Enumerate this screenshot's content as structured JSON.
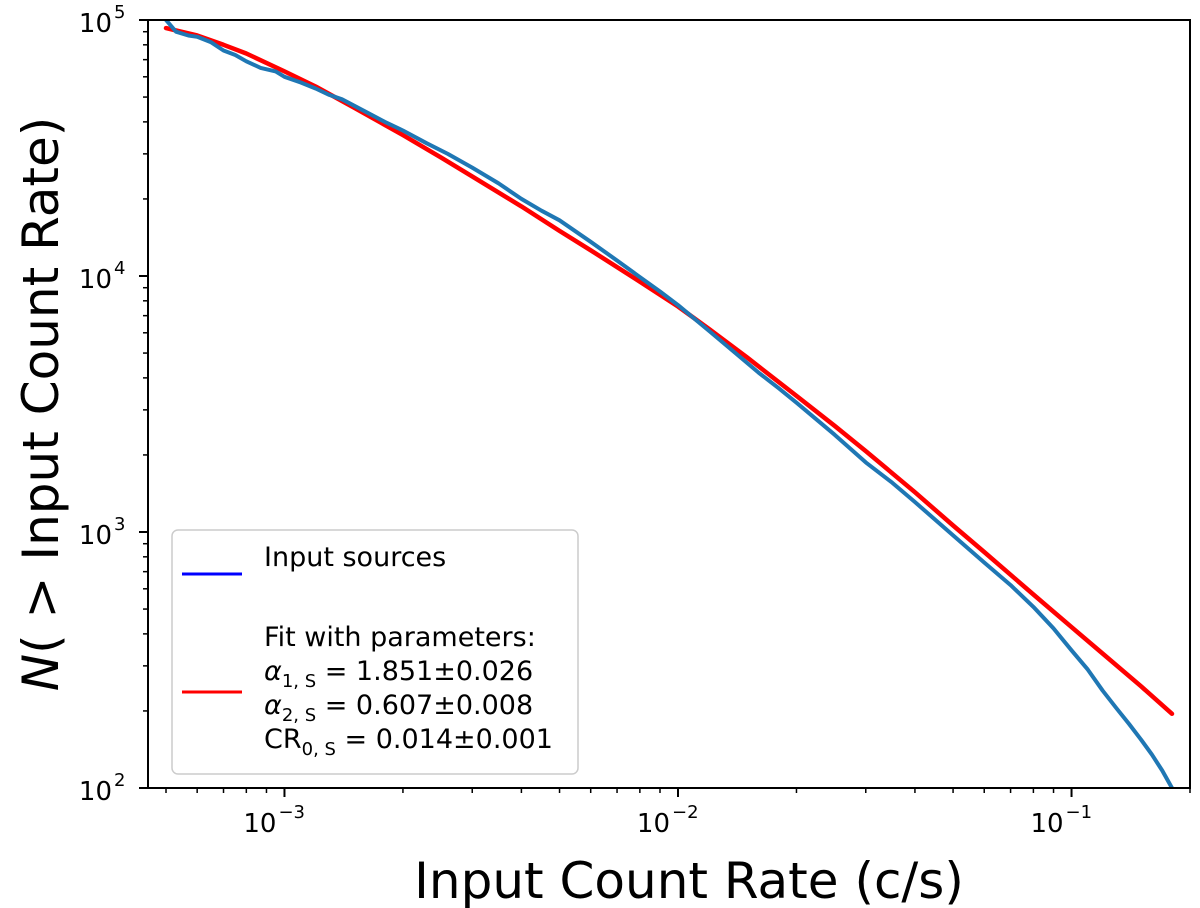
{
  "chart_data": {
    "type": "line",
    "title": "",
    "xlabel": "Input Count Rate (c/s)",
    "ylabel": "N( > Input Count Rate)",
    "xscale": "log",
    "yscale": "log",
    "xlim": [
      0.00045,
      0.2
    ],
    "ylim": [
      100,
      100000
    ],
    "x_ticks": [
      {
        "base": "10",
        "exp": "−3",
        "value": 0.001
      },
      {
        "base": "10",
        "exp": "−2",
        "value": 0.01
      },
      {
        "base": "10",
        "exp": "−1",
        "value": 0.1
      }
    ],
    "y_ticks": [
      {
        "base": "10",
        "exp": "2",
        "value": 100
      },
      {
        "base": "10",
        "exp": "3",
        "value": 1000
      },
      {
        "base": "10",
        "exp": "4",
        "value": 10000
      },
      {
        "base": "10",
        "exp": "5",
        "value": 100000
      }
    ],
    "grid": false,
    "legend_position": "lower-left",
    "series": [
      {
        "name": "Input sources",
        "legend_color": "#0000ff",
        "color": "#1f77b4",
        "x": [
          0.0005,
          0.00053,
          0.00057,
          0.0006,
          0.00065,
          0.0007,
          0.00075,
          0.0008,
          0.00087,
          0.00095,
          0.001,
          0.0011,
          0.0012,
          0.0013,
          0.0014,
          0.0016,
          0.0018,
          0.002,
          0.0023,
          0.0026,
          0.003,
          0.0035,
          0.004,
          0.0045,
          0.005,
          0.006,
          0.007,
          0.008,
          0.009,
          0.01,
          0.012,
          0.014,
          0.016,
          0.018,
          0.02,
          0.025,
          0.03,
          0.035,
          0.04,
          0.05,
          0.06,
          0.07,
          0.08,
          0.09,
          0.1,
          0.11,
          0.12,
          0.13,
          0.14,
          0.15,
          0.16,
          0.17,
          0.18
        ],
        "y": [
          100000,
          90000,
          87000,
          86000,
          82000,
          76000,
          73000,
          69000,
          65000,
          63000,
          60000,
          57000,
          54000,
          51000,
          49000,
          44000,
          40000,
          37000,
          33000,
          30000,
          26500,
          23000,
          20000,
          18000,
          16500,
          13600,
          11500,
          9900,
          8700,
          7700,
          6100,
          5000,
          4200,
          3650,
          3200,
          2400,
          1870,
          1560,
          1310,
          970,
          760,
          620,
          510,
          420,
          345,
          290,
          240,
          205,
          178,
          155,
          135,
          117,
          100
        ]
      },
      {
        "name": "Fit with parameters:",
        "color": "#ff0000",
        "x": [
          0.0005,
          0.0006,
          0.0007,
          0.0008,
          0.001,
          0.0012,
          0.0015,
          0.002,
          0.0025,
          0.003,
          0.004,
          0.005,
          0.006,
          0.008,
          0.01,
          0.012,
          0.015,
          0.02,
          0.025,
          0.03,
          0.04,
          0.05,
          0.06,
          0.08,
          0.1,
          0.12,
          0.15,
          0.18
        ],
        "y": [
          93000,
          87000,
          80000,
          74000,
          63000,
          55000,
          45500,
          35500,
          29000,
          24500,
          18700,
          15000,
          12600,
          9500,
          7600,
          6200,
          4800,
          3400,
          2600,
          2070,
          1430,
          1060,
          835,
          570,
          425,
          335,
          250,
          195
        ]
      }
    ],
    "legend": {
      "entries": [
        {
          "label": "Input sources",
          "color": "#0000ff"
        },
        {
          "label": "Fit with parameters:",
          "color": "#ff0000",
          "params": [
            {
              "sym": "α",
              "sub": "1, S",
              "value": " = 1.851±0.026"
            },
            {
              "sym": "α",
              "sub": "2, S",
              "value": " = 0.607±0.008"
            },
            {
              "sym": "CR",
              "sub": "0, S",
              "value": " = 0.014±0.001"
            }
          ]
        }
      ]
    }
  }
}
